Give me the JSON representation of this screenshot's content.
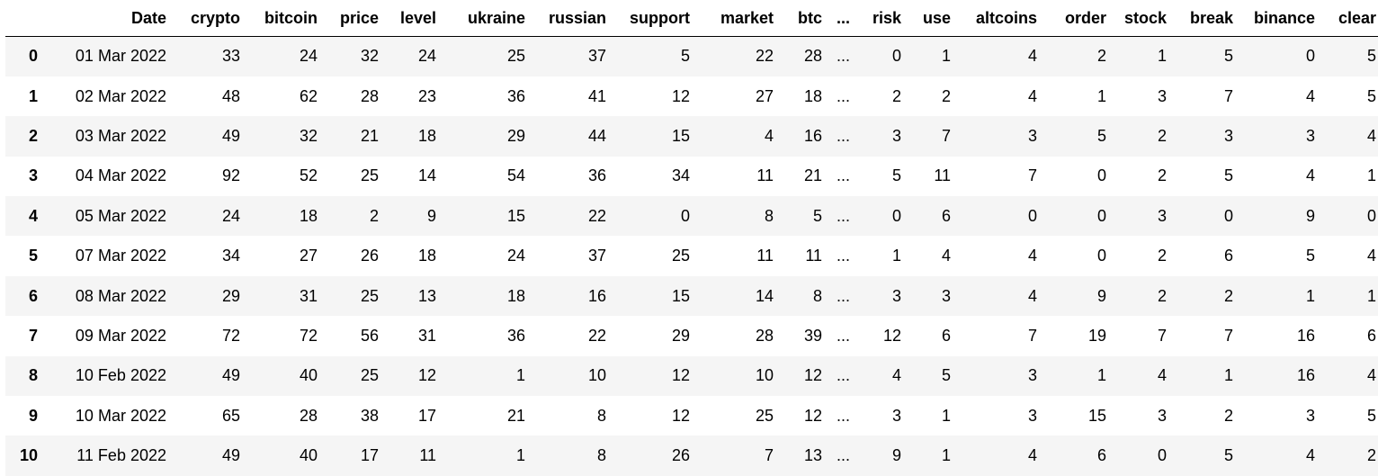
{
  "table": {
    "columns": [
      "",
      "Date",
      "crypto",
      "bitcoin",
      "price",
      "level",
      "ukraine",
      "russian",
      "support",
      "market",
      "btc",
      "...",
      "risk",
      "use",
      "altcoins",
      "order",
      "stock",
      "break",
      "binance",
      "clear"
    ],
    "rows": [
      [
        "0",
        "01 Mar 2022",
        "33",
        "24",
        "32",
        "24",
        "25",
        "37",
        "5",
        "22",
        "28",
        "...",
        "0",
        "1",
        "4",
        "2",
        "1",
        "5",
        "0",
        "5"
      ],
      [
        "1",
        "02 Mar 2022",
        "48",
        "62",
        "28",
        "23",
        "36",
        "41",
        "12",
        "27",
        "18",
        "...",
        "2",
        "2",
        "4",
        "1",
        "3",
        "7",
        "4",
        "5"
      ],
      [
        "2",
        "03 Mar 2022",
        "49",
        "32",
        "21",
        "18",
        "29",
        "44",
        "15",
        "4",
        "16",
        "...",
        "3",
        "7",
        "3",
        "5",
        "2",
        "3",
        "3",
        "4"
      ],
      [
        "3",
        "04 Mar 2022",
        "92",
        "52",
        "25",
        "14",
        "54",
        "36",
        "34",
        "11",
        "21",
        "...",
        "5",
        "11",
        "7",
        "0",
        "2",
        "5",
        "4",
        "1"
      ],
      [
        "4",
        "05 Mar 2022",
        "24",
        "18",
        "2",
        "9",
        "15",
        "22",
        "0",
        "8",
        "5",
        "...",
        "0",
        "6",
        "0",
        "0",
        "3",
        "0",
        "9",
        "0"
      ],
      [
        "5",
        "07 Mar 2022",
        "34",
        "27",
        "26",
        "18",
        "24",
        "37",
        "25",
        "11",
        "11",
        "...",
        "1",
        "4",
        "4",
        "0",
        "2",
        "6",
        "5",
        "4"
      ],
      [
        "6",
        "08 Mar 2022",
        "29",
        "31",
        "25",
        "13",
        "18",
        "16",
        "15",
        "14",
        "8",
        "...",
        "3",
        "3",
        "4",
        "9",
        "2",
        "2",
        "1",
        "1"
      ],
      [
        "7",
        "09 Mar 2022",
        "72",
        "72",
        "56",
        "31",
        "36",
        "22",
        "29",
        "28",
        "39",
        "...",
        "12",
        "6",
        "7",
        "19",
        "7",
        "7",
        "16",
        "6"
      ],
      [
        "8",
        "10 Feb 2022",
        "49",
        "40",
        "25",
        "12",
        "1",
        "10",
        "12",
        "10",
        "12",
        "...",
        "4",
        "5",
        "3",
        "1",
        "4",
        "1",
        "16",
        "4"
      ],
      [
        "9",
        "10 Mar 2022",
        "65",
        "28",
        "38",
        "17",
        "21",
        "8",
        "12",
        "25",
        "12",
        "...",
        "3",
        "1",
        "3",
        "15",
        "3",
        "2",
        "3",
        "5"
      ],
      [
        "10",
        "11 Feb 2022",
        "49",
        "40",
        "17",
        "11",
        "1",
        "8",
        "26",
        "7",
        "13",
        "...",
        "9",
        "1",
        "4",
        "6",
        "0",
        "5",
        "4",
        "2"
      ]
    ]
  },
  "colors": {
    "stripe": "#f5f5f5",
    "header_rule": "#000000",
    "text": "#000000"
  }
}
